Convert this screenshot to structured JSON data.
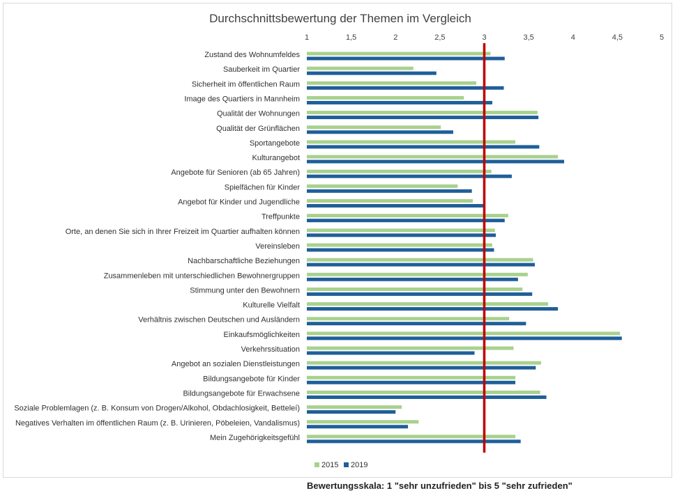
{
  "chart_data": {
    "type": "bar",
    "orientation": "horizontal",
    "title": "Durchschnittsbewertung der Themen im Vergleich",
    "xlim": [
      1,
      5
    ],
    "xticks": [
      "1",
      "1,5",
      "2",
      "2,5",
      "3",
      "3,5",
      "4",
      "4,5",
      "5"
    ],
    "xtick_values": [
      1,
      1.5,
      2,
      2.5,
      3,
      3.5,
      4,
      4.5,
      5
    ],
    "grid": false,
    "reference_line": {
      "value": 3,
      "color": "#c00000"
    },
    "legend": "bottom-left",
    "categories": [
      "Zustand des Wohnumfeldes",
      "Sauberkeit im Quartier",
      "Sicherheit im öffentlichen Raum",
      "Image des Quartiers in Mannheim",
      "Qualität der Wohnungen",
      "Qualität der Grünflächen",
      "Sportangebote",
      "Kulturangebot",
      "Angebote für Senioren (ab 65 Jahren)",
      "Spielfächen für Kinder",
      "Angebot für Kinder und Jugendliche",
      "Treffpunkte",
      "Orte, an denen Sie sich in Ihrer Freizeit im Quartier aufhalten können",
      "Vereinsleben",
      "Nachbarschaftliche Beziehungen",
      "Zusammenleben mit unterschiedlichen Bewohnergruppen",
      "Stimmung unter den Bewohnern",
      "Kulturelle Vielfalt",
      "Verhältnis zwischen Deutschen und Ausländern",
      "Einkaufsmöglichkeiten",
      "Verkehrssituation",
      "Angebot an sozialen Dienstleistungen",
      "Bildungsangebote für Kinder",
      "Bildungsangebote für Erwachsene",
      "Soziale Problemlagen (z. B. Konsum von Drogen/Alkohol, Obdachlosigkeit, Betteleí)",
      "Negatives Verhalten im öffentlichen Raum (z. B. Urinieren, Pöbeleien, Vandalismus)",
      "Mein Zugehörigkeitsgefühl"
    ],
    "series": [
      {
        "name": "2015",
        "color": "#a9d18e",
        "values": [
          3.07,
          2.2,
          2.91,
          2.77,
          3.6,
          2.51,
          3.35,
          3.83,
          3.08,
          2.7,
          2.87,
          3.27,
          3.12,
          3.09,
          3.55,
          3.49,
          3.43,
          3.72,
          3.28,
          4.53,
          3.33,
          3.64,
          3.35,
          3.63,
          2.07,
          2.26,
          3.35
        ]
      },
      {
        "name": "2019",
        "color": "#1f5f99",
        "values": [
          3.23,
          2.46,
          3.22,
          3.09,
          3.61,
          2.65,
          3.62,
          3.9,
          3.31,
          2.86,
          3.0,
          3.23,
          3.13,
          3.11,
          3.57,
          3.38,
          3.54,
          3.83,
          3.47,
          4.55,
          2.89,
          3.58,
          3.35,
          3.7,
          2.0,
          2.14,
          3.41
        ]
      }
    ]
  },
  "footnote": "Bewertungsskala: 1 \"sehr unzufrieden\" bis 5 \"sehr zufrieden\""
}
